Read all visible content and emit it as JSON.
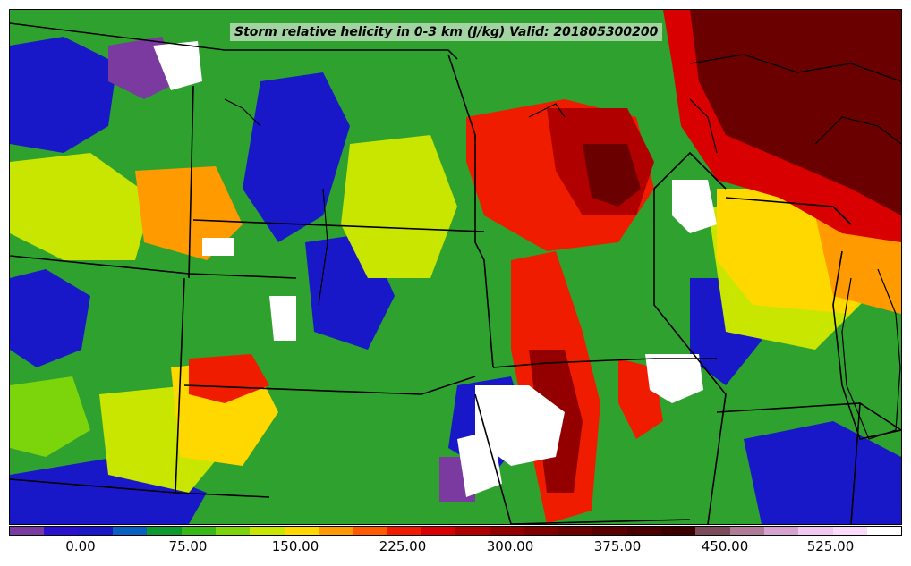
{
  "title": "Storm relative helicity in 0-3 km (J/kg) Valid: 201805300200",
  "colorbar": {
    "colors": [
      "#7a3aa0",
      "#2a10d0",
      "#1818c8",
      "#0a60c0",
      "#0c9a2e",
      "#39b81a",
      "#7cd40a",
      "#c8e600",
      "#ffd800",
      "#ff9a00",
      "#ff5a00",
      "#f01c00",
      "#d80000",
      "#b00000",
      "#940000",
      "#800000",
      "#6a0000",
      "#5a0000",
      "#4a0000",
      "#3c0000",
      "#7c4a5a",
      "#b07a98",
      "#d8a2d0",
      "#f0c8f0",
      "#fadcfa",
      "#ffffff"
    ],
    "tick_labels": [
      "0.00",
      "75.00",
      "150.00",
      "225.00",
      "300.00",
      "375.00",
      "450.00",
      "525.00"
    ]
  },
  "field_colors": {
    "purple": "#7a3aa0",
    "blue": "#1818c8",
    "green": "#0c9a2e",
    "lime": "#39b81a",
    "yellowgreen": "#c8e600",
    "yellow": "#ffd800",
    "orange": "#ff9a00",
    "red": "#f01c00",
    "darkred": "#b00000",
    "maroon": "#6a0000",
    "white": "#ffffff"
  }
}
